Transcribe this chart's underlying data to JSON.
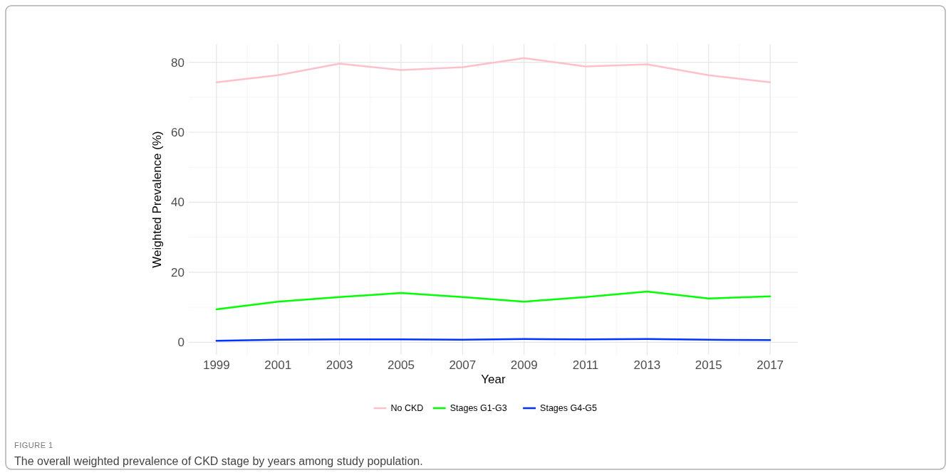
{
  "chart_data": {
    "type": "line",
    "xlabel": "Year",
    "ylabel": "Weighted Prevalence (%)",
    "x": [
      1999,
      2001,
      2003,
      2005,
      2007,
      2009,
      2011,
      2013,
      2015,
      2017
    ],
    "series": [
      {
        "name": "No CKD",
        "color": "#ffc0cb",
        "values": [
          74.3,
          76.3,
          79.6,
          77.8,
          78.6,
          81.2,
          78.8,
          79.4,
          76.3,
          74.3
        ]
      },
      {
        "name": "Stages G1-G3",
        "color": "#00ff00",
        "values": [
          9.4,
          11.6,
          12.9,
          14.1,
          12.9,
          11.6,
          12.9,
          14.5,
          12.5,
          13.1
        ]
      },
      {
        "name": "Stages G4-G5",
        "color": "#0033ff",
        "values": [
          0.4,
          0.7,
          0.8,
          0.8,
          0.7,
          0.9,
          0.8,
          0.9,
          0.7,
          0.6
        ]
      }
    ],
    "xlim": [
      1998.1,
      2017.9
    ],
    "xticks": [
      1999,
      2001,
      2003,
      2005,
      2007,
      2009,
      2011,
      2013,
      2015,
      2017
    ],
    "ylim": [
      -3.6,
      85.2
    ],
    "yticks": [
      0,
      20,
      40,
      60,
      80
    ],
    "grid": true,
    "legend": "bottom",
    "line_style": "solid",
    "marker": "none",
    "annotations": [
      "FIGURE 1",
      "The overall weighted prevalence of CKD stage by years among study population."
    ]
  }
}
